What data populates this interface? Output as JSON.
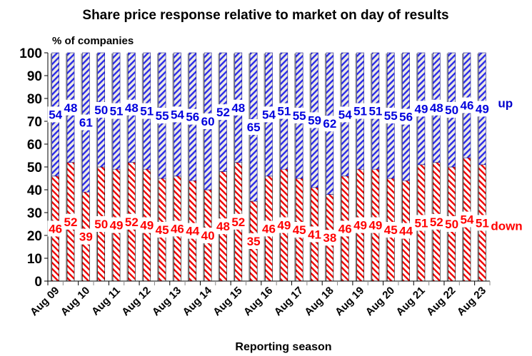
{
  "chart_data": {
    "type": "bar",
    "stacked": true,
    "title": "Share price response relative to market on day of results",
    "ylabel": "% of companies",
    "xlabel": "Reporting season",
    "ylim": [
      0,
      100
    ],
    "yticks": [
      0,
      10,
      20,
      30,
      40,
      50,
      60,
      70,
      80,
      90,
      100
    ],
    "xtick_labels": [
      "Aug 09",
      "Aug 10",
      "Aug 11",
      "Aug 12",
      "Aug 13",
      "Aug 14",
      "Aug 15",
      "Aug 16",
      "Aug 17",
      "Aug 18",
      "Aug 19",
      "Aug 20",
      "Aug 21",
      "Aug 22",
      "Aug 23"
    ],
    "xtick_every": 2,
    "bar_count": 29,
    "grid": false,
    "series": [
      {
        "name": "down",
        "color": "#FF0000",
        "values": [
          46,
          52,
          39,
          50,
          49,
          52,
          49,
          45,
          46,
          44,
          40,
          48,
          52,
          35,
          46,
          49,
          45,
          41,
          38,
          46,
          49,
          49,
          45,
          44,
          51,
          52,
          50,
          54,
          51
        ]
      },
      {
        "name": "up",
        "color": "#0000FF",
        "values": [
          54,
          48,
          61,
          50,
          51,
          48,
          51,
          55,
          54,
          56,
          60,
          52,
          48,
          65,
          54,
          51,
          55,
          59,
          62,
          54,
          51,
          51,
          55,
          56,
          49,
          48,
          50,
          46,
          49
        ]
      }
    ],
    "legend_placement": "right, beside last bar"
  }
}
